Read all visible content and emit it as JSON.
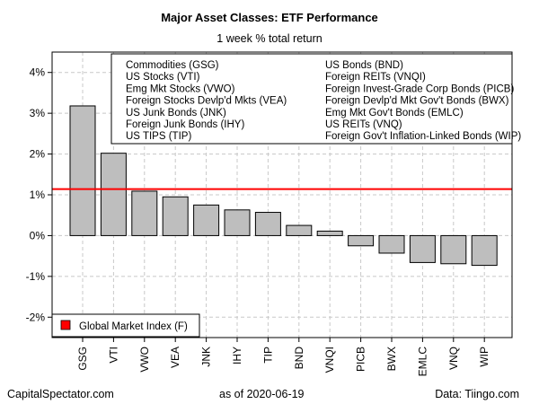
{
  "chart_data": {
    "type": "bar",
    "title": "Major Asset Classes: ETF Performance",
    "subtitle": "1 week % total return",
    "categories": [
      "GSG",
      "VTI",
      "VWO",
      "VEA",
      "JNK",
      "IHY",
      "TIP",
      "BND",
      "VNQI",
      "PICB",
      "BWX",
      "EMLC",
      "VNQ",
      "WIP"
    ],
    "values": [
      3.18,
      2.02,
      1.09,
      0.95,
      0.75,
      0.63,
      0.57,
      0.25,
      0.11,
      -0.25,
      -0.43,
      -0.66,
      -0.69,
      -0.73
    ],
    "reference_line": {
      "label": "Global Market Index (F)",
      "value": 1.14,
      "color": "#ff0000"
    },
    "ylim": [
      -2.5,
      4.5
    ],
    "yticks": [
      -2,
      -1,
      0,
      1,
      2,
      3,
      4
    ],
    "ytick_labels": [
      "-2%",
      "-1%",
      "0%",
      "1%",
      "2%",
      "3%",
      "4%"
    ],
    "grid": true,
    "bar_color": "#bebebe",
    "legend_left": [
      "Commodities (GSG)",
      "US Stocks (VTI)",
      "Emg Mkt Stocks (VWO)",
      "Foreign Stocks Devlp'd Mkts (VEA)",
      "US Junk Bonds (JNK)",
      "Foreign Junk Bonds (IHY)",
      "US TIPS (TIP)"
    ],
    "legend_right": [
      "US Bonds (BND)",
      "Foreign REITs (VNQI)",
      "Foreign Invest-Grade Corp Bonds (PICB)",
      "Foreign Devlp'd Mkt Gov't Bonds (BWX)",
      "Emg Mkt Gov't Bonds (EMLC)",
      "US REITs (VNQ)",
      "Foreign Gov't Inflation-Linked Bonds (WIP)"
    ]
  },
  "footer": {
    "source_left": "CapitalSpectator.com",
    "date_label": "as of  2020-06-19",
    "source_right": "Data: Tiingo.com"
  }
}
